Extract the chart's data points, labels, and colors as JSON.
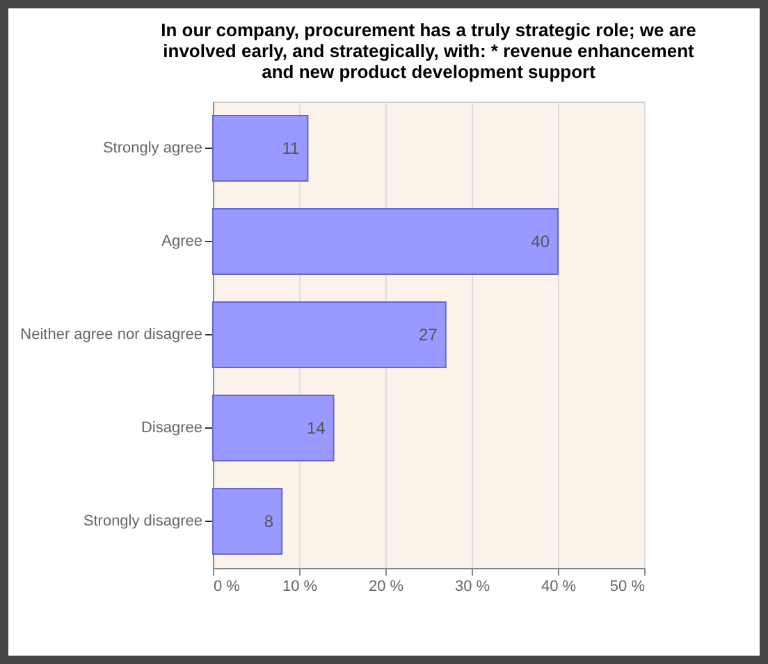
{
  "chart_data": {
    "type": "bar",
    "orientation": "horizontal",
    "title": "In our company, procurement has a truly strategic role; we are involved early, and strategically, with: * revenue enhancement and new product development support",
    "categories": [
      "Strongly agree",
      "Agree",
      "Neither agree nor disagree",
      "Disagree",
      "Strongly disagree"
    ],
    "values": [
      11,
      40,
      27,
      14,
      8
    ],
    "color": "#9999ff",
    "xlim": [
      0,
      50
    ],
    "xticks": [
      {
        "value": 0,
        "label": "0 %"
      },
      {
        "value": 10,
        "label": "10 %"
      },
      {
        "value": 20,
        "label": "20 %"
      },
      {
        "value": 30,
        "label": "30 %"
      },
      {
        "value": 40,
        "label": "40 %"
      },
      {
        "value": 50,
        "label": "50 %"
      }
    ],
    "grid": "x",
    "data_labels": true
  }
}
